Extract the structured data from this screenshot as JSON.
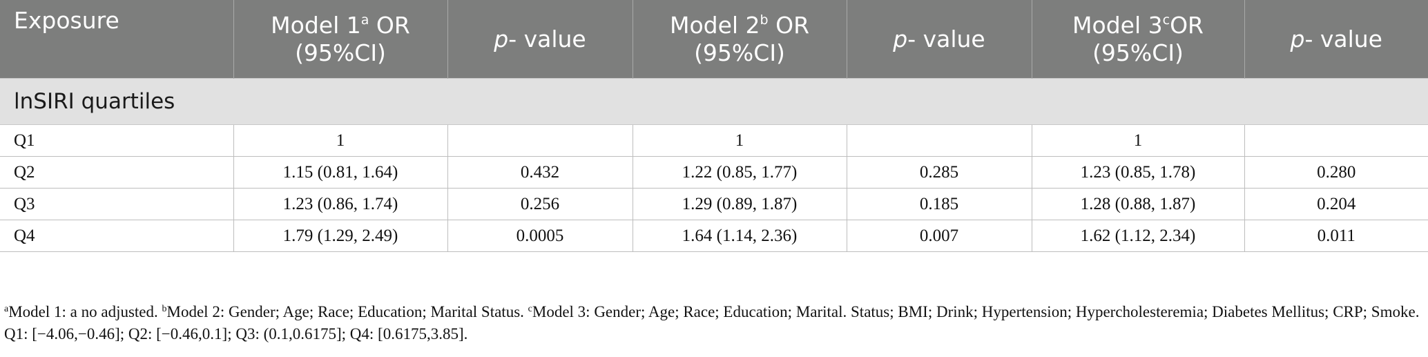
{
  "table": {
    "headers": [
      {
        "pre": "Exposure"
      },
      {
        "pre": "Model 1",
        "sup": "a",
        "post": " OR",
        "line2": "(95%CI)"
      },
      {
        "ital": "p",
        "post": "- value"
      },
      {
        "pre": "Model 2",
        "sup": "b",
        "post": " OR",
        "line2": "(95%CI)"
      },
      {
        "ital": "p",
        "post": "- value"
      },
      {
        "pre": "Model 3",
        "sup": "c",
        "post": "OR",
        "line2": "(95%CI)"
      },
      {
        "ital": "p",
        "post": "- value"
      }
    ],
    "group_label": "lnSIRI quartiles",
    "rows": [
      [
        "Q1",
        "1",
        "",
        "1",
        "",
        "1",
        ""
      ],
      [
        "Q2",
        "1.15 (0.81, 1.64)",
        "0.432",
        "1.22 (0.85, 1.77)",
        "0.285",
        "1.23 (0.85, 1.78)",
        "0.280"
      ],
      [
        "Q3",
        "1.23 (0.86, 1.74)",
        "0.256",
        "1.29 (0.89, 1.87)",
        "0.185",
        "1.28 (0.88, 1.87)",
        "0.204"
      ],
      [
        "Q4",
        "1.79 (1.29, 2.49)",
        "0.0005",
        "1.64 (1.14, 2.36)",
        "0.007",
        "1.62 (1.12, 2.34)",
        "0.011"
      ]
    ]
  },
  "footnote": {
    "a_sup": "a",
    "a_text": "Model 1: a no adjusted. ",
    "b_sup": "b",
    "b_text": "Model 2: Gender; Age; Race; Education; Marital Status. ",
    "c_sup": "c",
    "c_text": "Model 3: Gender; Age; Race; Education; Marital. Status; BMI; Drink; Hypertension; Hypercholesteremia; Diabetes Mellitus; CRP; Smoke. Q1: [−4.06,−0.46]; Q2: [−0.46,0.1]; Q3: (0.1,0.6175]; Q4: [0.6175,3.85]."
  }
}
